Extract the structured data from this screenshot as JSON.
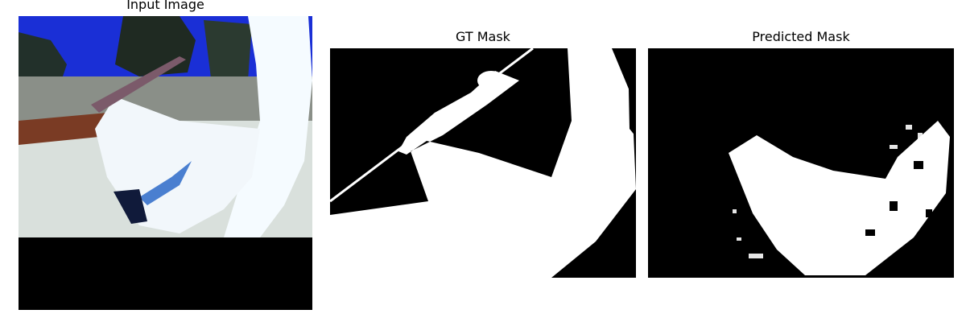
{
  "figure": {
    "panels": [
      {
        "title": "Input Image"
      },
      {
        "title": "GT Mask"
      },
      {
        "title": "Predicted Mask"
      }
    ]
  },
  "colors": {
    "mask_foreground": "#ffffff",
    "mask_background": "#000000",
    "sky": "#1a2fd6",
    "sculpture": "#f5fbff"
  }
}
